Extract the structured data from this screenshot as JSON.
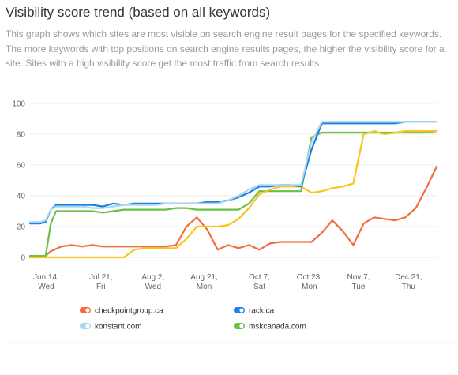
{
  "header": {
    "title": "Visibility score trend (based on all keywords)",
    "description": "This graph shows which sites are most visible on search engine result pages for the specified keywords. The more keywords with top positions on search engine results pages, the higher the visibility score for a site. Sites with a high visibility score get the most traffic from search results."
  },
  "chart_data": {
    "type": "line",
    "title": "",
    "xlabel": "",
    "ylabel": "",
    "ylim": [
      0,
      100
    ],
    "yticks": [
      0,
      20,
      40,
      60,
      80,
      100
    ],
    "grid": true,
    "legend_position": "bottom",
    "xticks": [
      {
        "label": "Jun 14,",
        "sub": "Wed",
        "x": 0.55
      },
      {
        "label": "Jul 21,",
        "sub": "Fri",
        "x": 5.8
      },
      {
        "label": "Aug 2,",
        "sub": "Wed",
        "x": 10.8
      },
      {
        "label": "Aug 21,",
        "sub": "Mon",
        "x": 15.7
      },
      {
        "label": "Oct 7,",
        "sub": "Sat",
        "x": 21.0
      },
      {
        "label": "Oct 23,",
        "sub": "Mon",
        "x": 25.8
      },
      {
        "label": "Nov 7,",
        "sub": "Tue",
        "x": 30.5
      },
      {
        "label": "Dec 21,",
        "sub": "Thu",
        "x": 35.3
      }
    ],
    "series": [
      {
        "name": "checkpointgroup.ca",
        "color": "#f26d3d",
        "points": [
          [
            -1,
            1
          ],
          [
            0,
            1
          ],
          [
            0.5,
            1
          ],
          [
            1,
            4
          ],
          [
            2,
            7
          ],
          [
            3,
            8
          ],
          [
            4,
            7
          ],
          [
            5,
            8
          ],
          [
            6,
            7
          ],
          [
            7,
            7
          ],
          [
            8,
            7
          ],
          [
            9,
            7
          ],
          [
            10,
            7
          ],
          [
            11,
            7
          ],
          [
            12,
            7
          ],
          [
            13,
            8
          ],
          [
            14,
            20
          ],
          [
            15,
            26
          ],
          [
            16,
            18
          ],
          [
            17,
            5
          ],
          [
            18,
            8
          ],
          [
            19,
            6
          ],
          [
            20,
            8
          ],
          [
            21,
            5
          ],
          [
            22,
            9
          ],
          [
            23,
            10
          ],
          [
            24,
            10
          ],
          [
            25,
            10
          ],
          [
            26,
            10
          ],
          [
            27,
            16
          ],
          [
            28,
            24
          ],
          [
            29,
            17
          ],
          [
            30,
            8
          ],
          [
            31,
            22
          ],
          [
            32,
            26
          ],
          [
            33,
            25
          ],
          [
            34,
            24
          ],
          [
            35,
            26
          ],
          [
            36,
            32
          ],
          [
            37,
            45
          ],
          [
            38,
            59
          ]
        ]
      },
      {
        "name": "rack.ca",
        "color": "#1d7fe0",
        "points": [
          [
            -1,
            22
          ],
          [
            0,
            22
          ],
          [
            0.5,
            23
          ],
          [
            1,
            31
          ],
          [
            1.5,
            34
          ],
          [
            2,
            34
          ],
          [
            3,
            34
          ],
          [
            4,
            34
          ],
          [
            5,
            34
          ],
          [
            6,
            33
          ],
          [
            7,
            35
          ],
          [
            8,
            34
          ],
          [
            9,
            35
          ],
          [
            10,
            35
          ],
          [
            11,
            35
          ],
          [
            12,
            35
          ],
          [
            13,
            35
          ],
          [
            14,
            35
          ],
          [
            15,
            35
          ],
          [
            16,
            36
          ],
          [
            17,
            36
          ],
          [
            18,
            37
          ],
          [
            19,
            39
          ],
          [
            20,
            42
          ],
          [
            21,
            46
          ],
          [
            22,
            46
          ],
          [
            23,
            47
          ],
          [
            24,
            47
          ],
          [
            25,
            46
          ],
          [
            26,
            70
          ],
          [
            27,
            87
          ],
          [
            28,
            87
          ],
          [
            29,
            87
          ],
          [
            30,
            87
          ],
          [
            31,
            87
          ],
          [
            32,
            87
          ],
          [
            33,
            87
          ],
          [
            34,
            87
          ],
          [
            35,
            88
          ],
          [
            36,
            88
          ],
          [
            37,
            88
          ],
          [
            38,
            88
          ]
        ]
      },
      {
        "name": "konstant.com",
        "color": "#a8d8f0",
        "points": [
          [
            -1,
            23
          ],
          [
            0,
            23
          ],
          [
            0.5,
            24
          ],
          [
            1,
            31
          ],
          [
            1.5,
            33
          ],
          [
            2,
            33
          ],
          [
            3,
            33
          ],
          [
            4,
            33
          ],
          [
            5,
            32
          ],
          [
            6,
            32
          ],
          [
            7,
            33
          ],
          [
            8,
            34
          ],
          [
            9,
            34
          ],
          [
            10,
            34
          ],
          [
            11,
            34
          ],
          [
            12,
            35
          ],
          [
            13,
            35
          ],
          [
            14,
            35
          ],
          [
            15,
            35
          ],
          [
            16,
            35
          ],
          [
            17,
            35
          ],
          [
            18,
            37
          ],
          [
            19,
            40
          ],
          [
            20,
            44
          ],
          [
            21,
            47
          ],
          [
            22,
            47
          ],
          [
            23,
            47
          ],
          [
            24,
            47
          ],
          [
            25,
            47
          ],
          [
            26,
            75
          ],
          [
            27,
            88
          ],
          [
            28,
            88
          ],
          [
            29,
            88
          ],
          [
            30,
            88
          ],
          [
            31,
            88
          ],
          [
            32,
            88
          ],
          [
            33,
            88
          ],
          [
            34,
            88
          ],
          [
            35,
            88
          ],
          [
            36,
            88
          ],
          [
            37,
            88
          ],
          [
            38,
            88
          ]
        ]
      },
      {
        "name": "mskcanada.com",
        "color": "#6abf45",
        "points": [
          [
            -1,
            1
          ],
          [
            0,
            1
          ],
          [
            0.5,
            1
          ],
          [
            1,
            22
          ],
          [
            1.5,
            30
          ],
          [
            2,
            30
          ],
          [
            3,
            30
          ],
          [
            4,
            30
          ],
          [
            5,
            30
          ],
          [
            6,
            29
          ],
          [
            7,
            30
          ],
          [
            8,
            31
          ],
          [
            9,
            31
          ],
          [
            10,
            31
          ],
          [
            11,
            31
          ],
          [
            12,
            31
          ],
          [
            13,
            32
          ],
          [
            14,
            32
          ],
          [
            15,
            31
          ],
          [
            16,
            31
          ],
          [
            17,
            31
          ],
          [
            18,
            31
          ],
          [
            19,
            31
          ],
          [
            20,
            35
          ],
          [
            21,
            43
          ],
          [
            22,
            43
          ],
          [
            23,
            43
          ],
          [
            24,
            43
          ],
          [
            25,
            43
          ],
          [
            26,
            78
          ],
          [
            27,
            81
          ],
          [
            28,
            81
          ],
          [
            29,
            81
          ],
          [
            30,
            81
          ],
          [
            31,
            81
          ],
          [
            32,
            81
          ],
          [
            33,
            81
          ],
          [
            34,
            81
          ],
          [
            35,
            81
          ],
          [
            36,
            81
          ],
          [
            37,
            81
          ],
          [
            38,
            82
          ]
        ]
      },
      {
        "name": "",
        "color": "#f7c51e",
        "points": [
          [
            -1,
            0
          ],
          [
            0,
            0
          ],
          [
            0.5,
            0
          ],
          [
            1,
            0
          ],
          [
            2,
            0
          ],
          [
            3,
            0
          ],
          [
            4,
            0
          ],
          [
            5,
            0
          ],
          [
            6,
            0
          ],
          [
            7,
            0
          ],
          [
            8,
            0
          ],
          [
            9,
            5
          ],
          [
            10,
            6
          ],
          [
            11,
            6
          ],
          [
            12,
            6
          ],
          [
            13,
            6
          ],
          [
            14,
            12
          ],
          [
            15,
            20
          ],
          [
            16,
            20
          ],
          [
            17,
            20
          ],
          [
            18,
            21
          ],
          [
            19,
            25
          ],
          [
            20,
            32
          ],
          [
            21,
            41
          ],
          [
            22,
            44
          ],
          [
            23,
            46
          ],
          [
            24,
            46
          ],
          [
            25,
            46
          ],
          [
            26,
            42
          ],
          [
            27,
            43
          ],
          [
            28,
            45
          ],
          [
            29,
            46
          ],
          [
            30,
            48
          ],
          [
            31,
            80
          ],
          [
            32,
            82
          ],
          [
            33,
            80
          ],
          [
            34,
            81
          ],
          [
            35,
            82
          ],
          [
            36,
            82
          ],
          [
            37,
            82
          ],
          [
            38,
            82
          ]
        ]
      }
    ]
  }
}
